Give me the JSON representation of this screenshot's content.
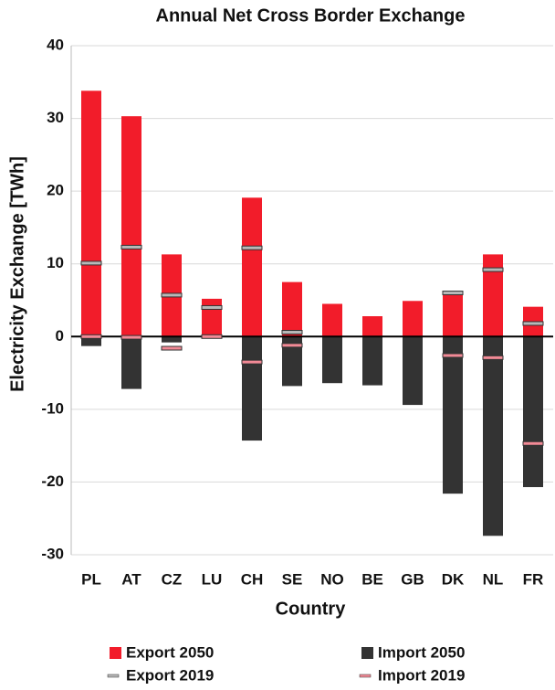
{
  "chart_data": {
    "type": "bar",
    "title": "Annual Net Cross Border Exchange",
    "x_label": "Country",
    "y_label": "Electricity Exchange [TWh]",
    "categories": [
      "PL",
      "AT",
      "CZ",
      "LU",
      "CH",
      "SE",
      "NO",
      "BE",
      "GB",
      "DK",
      "NL",
      "FR"
    ],
    "series": [
      {
        "name": "Export 2050",
        "color": "#f21c2a",
        "style": "bar",
        "values": [
          33.8,
          30.3,
          11.3,
          5.2,
          19.1,
          7.5,
          4.5,
          2.8,
          4.9,
          5.8,
          11.3,
          4.1
        ]
      },
      {
        "name": "Import 2050",
        "color": "#333333",
        "style": "bar",
        "values": [
          -1.3,
          -7.2,
          -0.8,
          0,
          -14.3,
          -6.8,
          -6.4,
          -6.7,
          -9.4,
          -21.6,
          -27.4,
          -20.7
        ]
      },
      {
        "name": "Export 2019",
        "color": "#b8b8b8",
        "style": "marker",
        "values": [
          10.1,
          12.3,
          5.7,
          4.0,
          12.2,
          0.6,
          null,
          null,
          null,
          6.0,
          9.2,
          1.8
        ]
      },
      {
        "name": "Import 2019",
        "color": "#f28a96",
        "style": "marker",
        "values": [
          0,
          -0.1,
          -1.6,
          0,
          -3.5,
          -1.2,
          null,
          null,
          null,
          -2.6,
          -2.9,
          -14.7
        ]
      }
    ],
    "ylim": [
      -30,
      40
    ],
    "yticks": [
      -30,
      -20,
      -10,
      0,
      10,
      20,
      30,
      40
    ],
    "grid": true
  }
}
